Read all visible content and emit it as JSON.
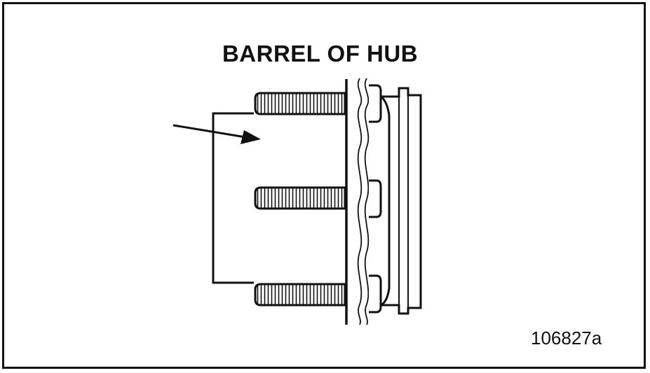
{
  "diagram": {
    "title": "BARREL OF HUB",
    "figure_id": "106827a",
    "components": {
      "studs": [
        "stud-top",
        "stud-middle",
        "stud-bottom"
      ],
      "flange": "hub-flange",
      "barrel": "hub-barrel",
      "pointer": "arrow-pointer",
      "bracket": "stud-bracket"
    },
    "colors": {
      "line": "#111111",
      "background": "#ffffff"
    }
  }
}
